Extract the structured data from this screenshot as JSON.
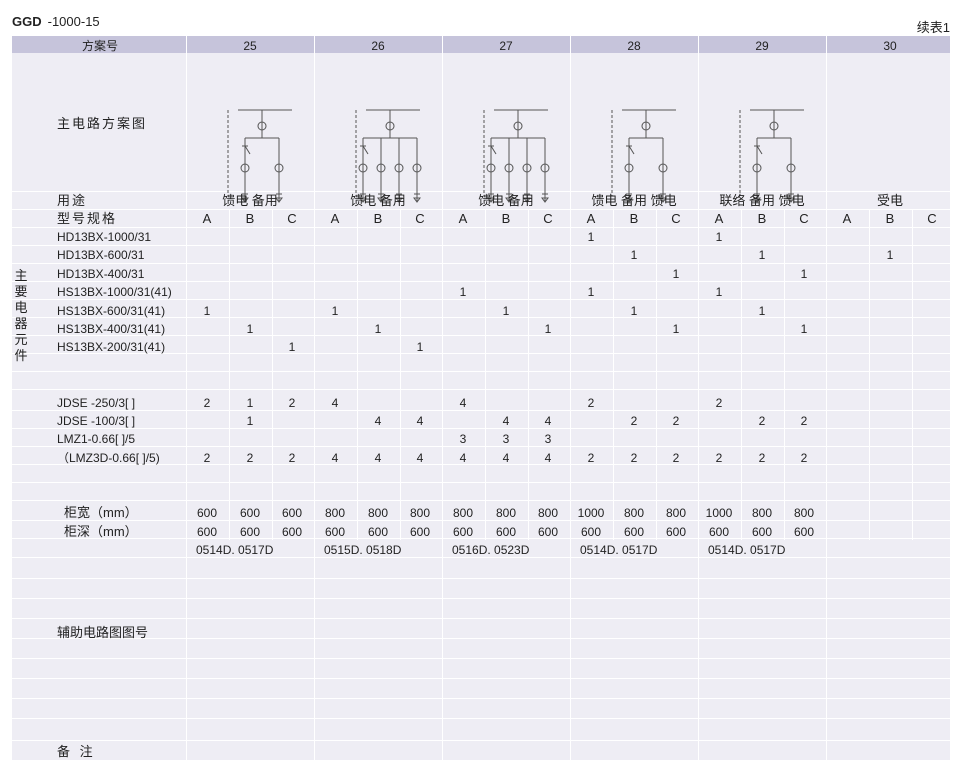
{
  "title": {
    "code": "GGD",
    "model": "-1000-15",
    "continued": "续表1"
  },
  "header": {
    "scheme_label": "方案号",
    "schemes": [
      "25",
      "26",
      "27",
      "28",
      "29",
      "30"
    ]
  },
  "row_labels": {
    "circuit_diagram": "主电路方案图",
    "usage": "用途",
    "spec": "型号规格",
    "main_components": "主要电器元件",
    "cabinet_width": "柜宽（mm）",
    "cabinet_depth": "柜深（mm）",
    "aux_circuit": "辅助电路图图号",
    "remarks": "备 注"
  },
  "usage": [
    "馈电 备用",
    "馈电 备用",
    "馈电 备用",
    "馈电 备用 馈电",
    "联络 备用 馈电",
    "受电"
  ],
  "sub_columns": [
    "A",
    "B",
    "C",
    "A",
    "B",
    "C",
    "A",
    "B",
    "C",
    "A",
    "B",
    "C",
    "A",
    "B",
    "C",
    "A",
    "B",
    "C"
  ],
  "components": [
    {
      "name": "HD13BX-1000/31",
      "values": [
        "",
        "",
        "",
        "",
        "",
        "",
        "",
        "",
        "",
        "1",
        "",
        "",
        "1",
        "",
        "",
        "",
        "",
        ""
      ]
    },
    {
      "name": "HD13BX-600/31",
      "values": [
        "",
        "",
        "",
        "",
        "",
        "",
        "",
        "",
        "",
        "",
        "1",
        "",
        "",
        "1",
        "",
        "",
        "1",
        ""
      ]
    },
    {
      "name": "HD13BX-400/31",
      "values": [
        "",
        "",
        "",
        "",
        "",
        "",
        "",
        "",
        "",
        "",
        "",
        "1",
        "",
        "",
        "1",
        "",
        "",
        ""
      ]
    },
    {
      "name": "HS13BX-1000/31(41)",
      "values": [
        "",
        "",
        "",
        "",
        "",
        "",
        "1",
        "",
        "",
        "1",
        "",
        "",
        "1",
        "",
        "",
        "",
        "",
        ""
      ]
    },
    {
      "name": "HS13BX-600/31(41)",
      "values": [
        "1",
        "",
        "",
        "1",
        "",
        "",
        "",
        "1",
        "",
        "",
        "1",
        "",
        "",
        "1",
        "",
        "",
        "",
        ""
      ]
    },
    {
      "name": "HS13BX-400/31(41)",
      "values": [
        "",
        "1",
        "",
        "",
        "1",
        "",
        "",
        "",
        "1",
        "",
        "",
        "1",
        "",
        "",
        "1",
        "",
        "",
        ""
      ]
    },
    {
      "name": "HS13BX-200/31(41)",
      "values": [
        "",
        "",
        "1",
        "",
        "",
        "1",
        "",
        "",
        "",
        "",
        "",
        "",
        "",
        "",
        "",
        "",
        "",
        ""
      ]
    },
    {
      "name": "",
      "values": [
        "",
        "",
        "",
        "",
        "",
        "",
        "",
        "",
        "",
        "",
        "",
        "",
        "",
        "",
        "",
        "",
        "",
        ""
      ]
    },
    {
      "name": "JDSE -250/3[ ]",
      "values": [
        "2",
        "1",
        "2",
        "4",
        "",
        "",
        "4",
        "",
        "",
        "2",
        "",
        "",
        "2",
        "",
        "",
        "",
        "",
        ""
      ]
    },
    {
      "name": "JDSE -100/3[ ]",
      "values": [
        "",
        "1",
        "",
        "",
        "4",
        "4",
        "",
        "4",
        "4",
        "",
        "2",
        "2",
        "",
        "2",
        "2",
        "",
        "",
        ""
      ]
    },
    {
      "name": "LMZ1-0.66[ ]/5",
      "values": [
        "",
        "",
        "",
        "",
        "",
        "",
        "3",
        "3",
        "3",
        "",
        "",
        "",
        "",
        "",
        "",
        "",
        "",
        ""
      ]
    },
    {
      "name": "（LMZ3D-0.66[ ]/5)",
      "values": [
        "2",
        "2",
        "2",
        "4",
        "4",
        "4",
        "4",
        "4",
        "4",
        "2",
        "2",
        "2",
        "2",
        "2",
        "2",
        "",
        "",
        ""
      ]
    }
  ],
  "cabinet_width": [
    "600",
    "600",
    "600",
    "800",
    "800",
    "800",
    "800",
    "800",
    "800",
    "1000",
    "800",
    "800",
    "1000",
    "800",
    "800",
    "",
    "",
    ""
  ],
  "cabinet_depth": [
    "600",
    "600",
    "600",
    "600",
    "600",
    "600",
    "600",
    "600",
    "600",
    "600",
    "600",
    "600",
    "600",
    "600",
    "600",
    "",
    "",
    ""
  ],
  "aux_refs": [
    "0514D. 0517D",
    "0515D. 0518D",
    "0516D. 0523D",
    "0514D. 0517D",
    "0514D. 0517D",
    ""
  ],
  "diagram_color": "#555555"
}
